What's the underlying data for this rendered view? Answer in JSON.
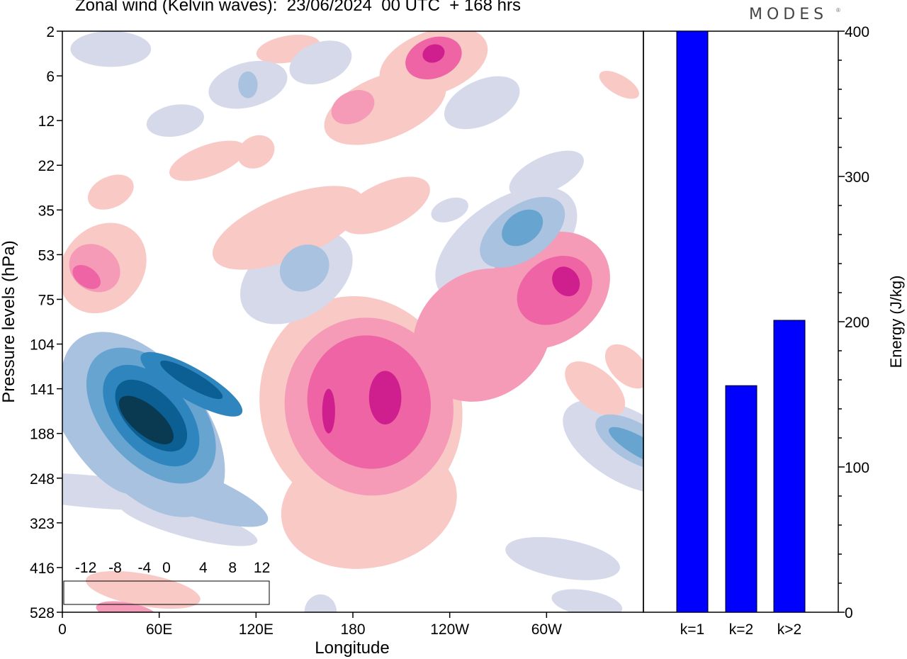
{
  "header": {
    "title": "Zonal wind (Kelvin waves):  23/06/2024  00 UTC  + 168 hrs",
    "brand": "MODES",
    "brand_mark": "®"
  },
  "colors": {
    "neg6": "#0a3a52",
    "neg5": "#0b5f92",
    "neg4": "#2f86bf",
    "neg3": "#67a4d0",
    "neg2": "#a8c2df",
    "neg1": "#d6d9ea",
    "zero": "#ffffff",
    "pos1": "#f9c9c6",
    "pos2": "#f59ab7",
    "pos3": "#ee64a4",
    "pos4": "#cf1f8f",
    "pos5": "#a30d7b",
    "pos6": "#5c0a6e",
    "bar": "#0000ff"
  },
  "chart_data": [
    {
      "type": "heatmap",
      "title": "Zonal wind (Kelvin waves):  23/06/2024  00 UTC  + 168 hrs",
      "xlabel": "Longitude",
      "ylabel": "Pressure levels (hPa)",
      "x_ticks": [
        "0",
        "60E",
        "120E",
        "180",
        "120W",
        "60W"
      ],
      "x_tick_degrees": [
        0,
        60,
        120,
        180,
        240,
        300
      ],
      "xlim": [
        0,
        360
      ],
      "y_ticks": [
        "2",
        "6",
        "12",
        "22",
        "35",
        "53",
        "75",
        "104",
        "141",
        "188",
        "248",
        "323",
        "416",
        "528"
      ],
      "colorbar": {
        "labels": [
          "-12",
          "-8",
          "-4",
          "0",
          "4",
          "8",
          "12"
        ],
        "levels": [
          -14,
          -12,
          -10,
          -8,
          -6,
          -4,
          -2,
          2,
          4,
          6,
          8,
          10,
          12,
          14
        ]
      },
      "features": [
        {
          "sign": "neg",
          "lon": 55,
          "level": 8.6,
          "peak": -13
        },
        {
          "sign": "neg",
          "lon": 80,
          "level": 7.9,
          "peak": -11
        },
        {
          "sign": "pos",
          "lon": 200,
          "level": 8.2,
          "peak": 9
        },
        {
          "sign": "pos",
          "lon": 165,
          "level": 8.5,
          "peak": 8
        },
        {
          "sign": "pos",
          "lon": 310,
          "level": 6.0,
          "peak": 8
        },
        {
          "sign": "neg",
          "lon": 280,
          "level": 4.8,
          "peak": -7
        },
        {
          "sign": "pos",
          "lon": 230,
          "level": 0.5,
          "peak": 8
        },
        {
          "sign": "pos",
          "lon": 15,
          "level": 5.5,
          "peak": 7
        },
        {
          "sign": "neg",
          "lon": 355,
          "level": 9.2,
          "peak": -7
        }
      ]
    },
    {
      "type": "bar",
      "categories": [
        "k=1",
        "k=2",
        "k>2"
      ],
      "values": [
        400,
        156,
        201
      ],
      "xlabel": "",
      "ylabel": "Energy (J/kg)",
      "ylim": [
        0,
        400
      ],
      "y_ticks": [
        "0",
        "100",
        "200",
        "300",
        "400"
      ]
    }
  ]
}
